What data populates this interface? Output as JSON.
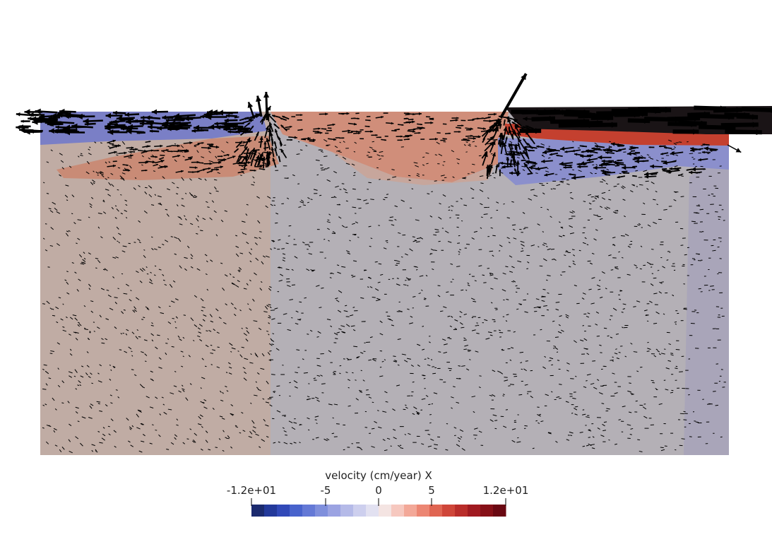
{
  "scene": {
    "field": "velocity X",
    "background": "#ffffff",
    "arrow_color": "#000000",
    "region_colors": {
      "left_block": "#c0aca4",
      "right_block": "#b4b0b6",
      "right_edge_strip": "#a9a5b9",
      "top_left_layer": "#7a7fc6",
      "top_mid_layer": "#d08e7a",
      "top_right_layer": "#1a1416",
      "upper_left_wedge": "#c98b76",
      "upper_right_blue_band": "#8b8fcc"
    }
  },
  "colorbar": {
    "title": "velocity (cm/year) X",
    "range": [
      -12,
      12
    ],
    "ticks": [
      {
        "label": "-1.2e+01",
        "value": -12
      },
      {
        "label": "-5",
        "value": -5
      },
      {
        "label": "0",
        "value": 0
      },
      {
        "label": "5",
        "value": 5
      },
      {
        "label": "1.2e+01",
        "value": 12
      }
    ],
    "colors": [
      "#1b2a6e",
      "#23399a",
      "#3149b8",
      "#4863cc",
      "#6479d6",
      "#7f8fdc",
      "#9ba3e2",
      "#b5bae8",
      "#cdcfee",
      "#e2e1f1",
      "#f4e4e2",
      "#f6c8bf",
      "#f3a898",
      "#ec8673",
      "#e06552",
      "#cf4639",
      "#b92d2a",
      "#a01a20",
      "#861017",
      "#6a0812"
    ]
  }
}
